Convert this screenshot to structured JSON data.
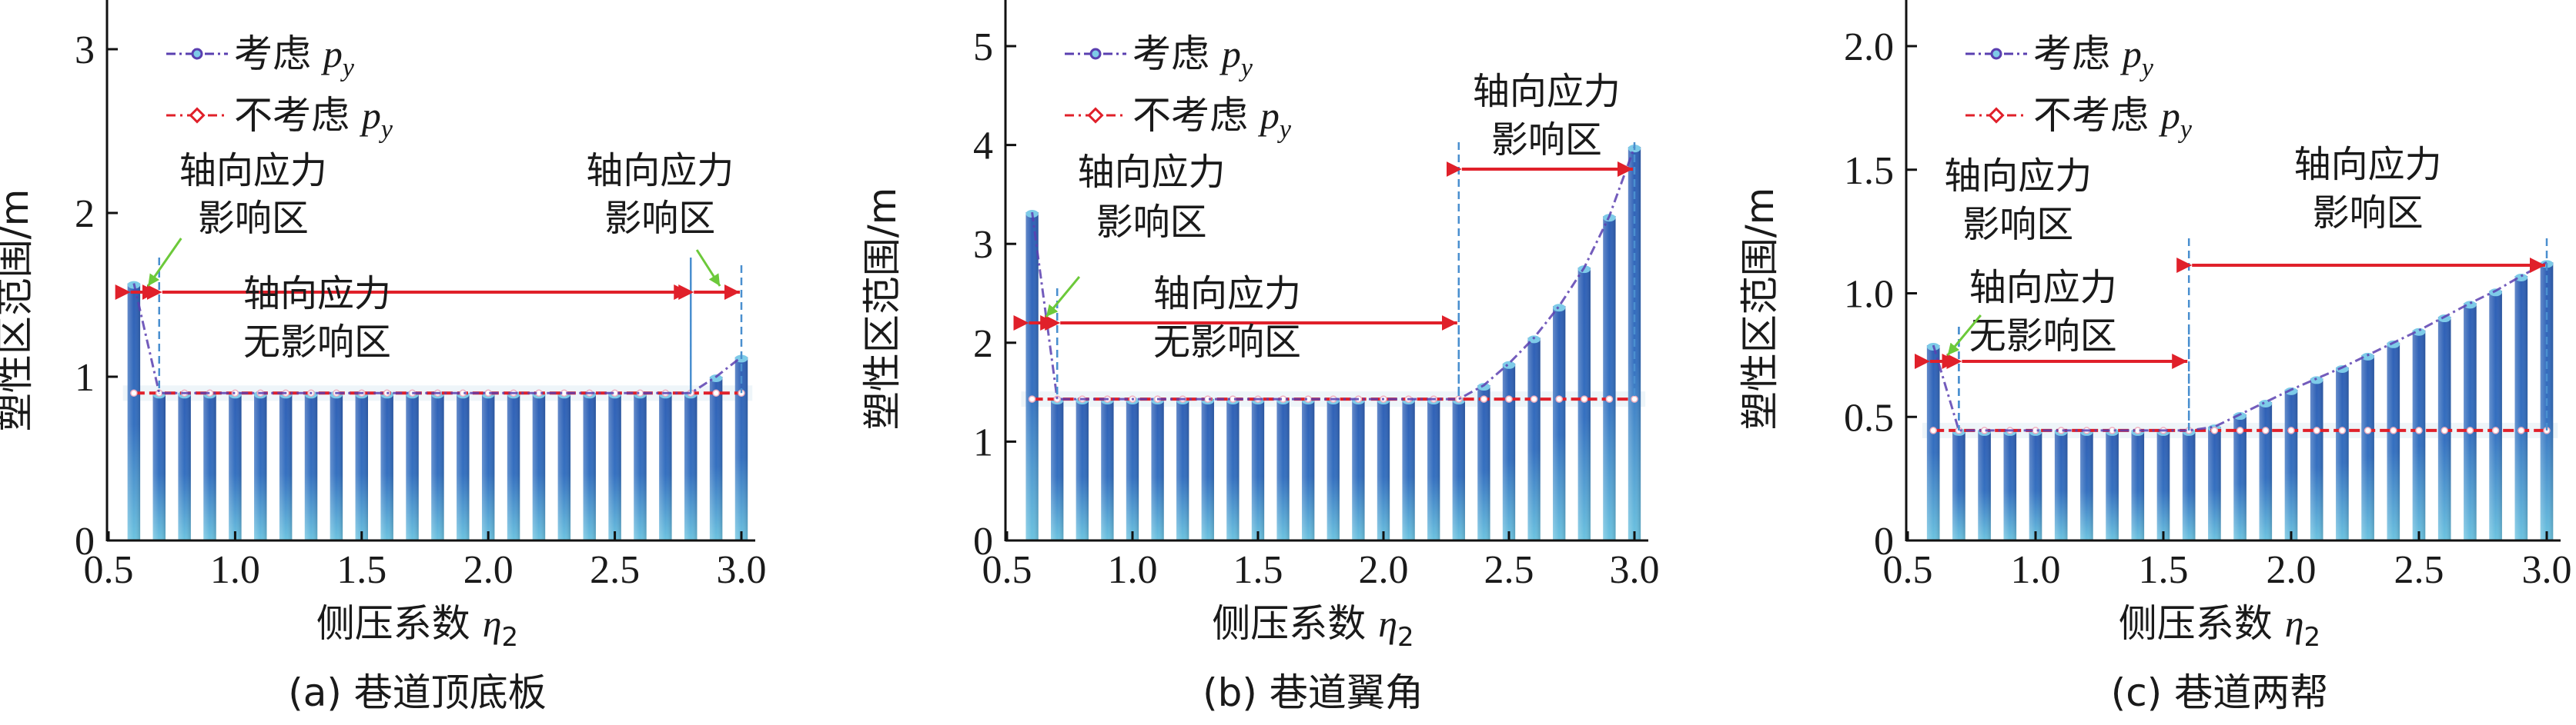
{
  "chart_data": [
    {
      "type": "bar",
      "panel": "a",
      "caption": "(a) 巷道顶底板",
      "xlabel": "侧压系数",
      "xlabel_symbol": "η",
      "xlabel_sub": "2",
      "ylabel": "塑性区范围/m",
      "xlim": [
        0.5,
        3.05
      ],
      "ylim": [
        0,
        3.2
      ],
      "xticks": [
        "0.5",
        "1.0",
        "1.5",
        "2.0",
        "2.5",
        "3.0"
      ],
      "yticks": [
        "0",
        "1",
        "2",
        "3"
      ],
      "x": [
        0.6,
        0.7,
        0.8,
        0.9,
        1.0,
        1.1,
        1.2,
        1.3,
        1.4,
        1.5,
        1.6,
        1.7,
        1.8,
        1.9,
        2.0,
        2.1,
        2.2,
        2.3,
        2.4,
        2.5,
        2.6,
        2.7,
        2.8,
        2.9,
        3.0
      ],
      "series": [
        {
          "name": "考虑 p_y",
          "color": "#5a3fb0",
          "values": [
            1.57,
            0.9,
            0.9,
            0.9,
            0.9,
            0.9,
            0.9,
            0.9,
            0.9,
            0.9,
            0.9,
            0.9,
            0.9,
            0.9,
            0.9,
            0.9,
            0.9,
            0.9,
            0.9,
            0.9,
            0.9,
            0.9,
            0.9,
            1.0,
            1.12
          ]
        },
        {
          "name": "不考虑 p_y",
          "color": "#e0202a",
          "values": [
            0.9,
            0.9,
            0.9,
            0.9,
            0.9,
            0.9,
            0.9,
            0.9,
            0.9,
            0.9,
            0.9,
            0.9,
            0.9,
            0.9,
            0.9,
            0.9,
            0.9,
            0.9,
            0.9,
            0.9,
            0.9,
            0.9,
            0.9,
            0.9,
            0.9
          ]
        }
      ],
      "zones": [
        {
          "label1": "轴向应力",
          "label2": "影响区",
          "from": 0.6,
          "to": 0.7
        },
        {
          "label1": "轴向应力",
          "label2": "无影响区",
          "from": 0.7,
          "to": 2.8
        },
        {
          "label1": "轴向应力",
          "label2": "影响区",
          "from": 2.8,
          "to": 3.0
        }
      ],
      "legend": {
        "position": "top-left",
        "items": [
          {
            "text": "考虑",
            "sym": "p",
            "sub": "y"
          },
          {
            "text": "不考虑",
            "sym": "p",
            "sub": "y"
          }
        ]
      }
    },
    {
      "type": "bar",
      "panel": "b",
      "caption": "(b) 巷道翼角",
      "xlabel": "侧压系数",
      "xlabel_symbol": "η",
      "xlabel_sub": "2",
      "ylabel": "塑性区范围/m",
      "xlim": [
        0.5,
        3.05
      ],
      "ylim": [
        0,
        5.4
      ],
      "xticks": [
        "0.5",
        "1.0",
        "1.5",
        "2.0",
        "2.5",
        "3.0"
      ],
      "yticks": [
        "0",
        "1",
        "2",
        "3",
        "4",
        "5"
      ],
      "x": [
        0.6,
        0.7,
        0.8,
        0.9,
        1.0,
        1.1,
        1.2,
        1.3,
        1.4,
        1.5,
        1.6,
        1.7,
        1.8,
        1.9,
        2.0,
        2.1,
        2.2,
        2.3,
        2.4,
        2.5,
        2.6,
        2.7,
        2.8,
        2.9,
        3.0
      ],
      "series": [
        {
          "name": "考虑 p_y",
          "color": "#5a3fb0",
          "values": [
            3.32,
            1.43,
            1.43,
            1.43,
            1.43,
            1.43,
            1.43,
            1.43,
            1.43,
            1.43,
            1.43,
            1.43,
            1.43,
            1.43,
            1.43,
            1.43,
            1.43,
            1.43,
            1.57,
            1.79,
            2.05,
            2.37,
            2.76,
            3.28,
            3.98
          ]
        },
        {
          "name": "不考虑 p_y",
          "color": "#e0202a",
          "values": [
            1.43,
            1.43,
            1.43,
            1.43,
            1.43,
            1.43,
            1.43,
            1.43,
            1.43,
            1.43,
            1.43,
            1.43,
            1.43,
            1.43,
            1.43,
            1.43,
            1.43,
            1.43,
            1.43,
            1.43,
            1.43,
            1.43,
            1.43,
            1.43,
            1.43
          ]
        }
      ],
      "zones": [
        {
          "label1": "轴向应力",
          "label2": "影响区",
          "from": 0.6,
          "to": 0.7
        },
        {
          "label1": "轴向应力",
          "label2": "无影响区",
          "from": 0.7,
          "to": 2.3
        },
        {
          "label1": "轴向应力",
          "label2": "影响区",
          "from": 2.3,
          "to": 3.0
        }
      ],
      "legend": {
        "position": "top-left",
        "items": [
          {
            "text": "考虑",
            "sym": "p",
            "sub": "y"
          },
          {
            "text": "不考虑",
            "sym": "p",
            "sub": "y"
          }
        ]
      }
    },
    {
      "type": "bar",
      "panel": "c",
      "caption": "(c) 巷道两帮",
      "xlabel": "侧压系数",
      "xlabel_symbol": "η",
      "xlabel_sub": "2",
      "ylabel": "塑性区范围/m",
      "xlim": [
        0.5,
        3.05
      ],
      "ylim": [
        0,
        2.18
      ],
      "xticks": [
        "0.5",
        "1.0",
        "1.5",
        "2.0",
        "2.5",
        "3.0"
      ],
      "yticks": [
        "0",
        "0.5",
        "1.0",
        "1.5",
        "2.0"
      ],
      "x": [
        0.6,
        0.7,
        0.8,
        0.9,
        1.0,
        1.1,
        1.2,
        1.3,
        1.4,
        1.5,
        1.6,
        1.7,
        1.8,
        1.9,
        2.0,
        2.1,
        2.2,
        2.3,
        2.4,
        2.5,
        2.6,
        2.7,
        2.8,
        2.9,
        3.0
      ],
      "series": [
        {
          "name": "考虑 p_y",
          "color": "#5a3fb0",
          "values": [
            0.79,
            0.445,
            0.445,
            0.445,
            0.445,
            0.445,
            0.445,
            0.445,
            0.445,
            0.445,
            0.445,
            0.46,
            0.51,
            0.56,
            0.61,
            0.655,
            0.7,
            0.75,
            0.8,
            0.85,
            0.905,
            0.96,
            1.01,
            1.07,
            1.125
          ]
        },
        {
          "name": "不考虑 p_y",
          "color": "#e0202a",
          "values": [
            0.445,
            0.445,
            0.445,
            0.445,
            0.445,
            0.445,
            0.445,
            0.445,
            0.445,
            0.445,
            0.445,
            0.445,
            0.445,
            0.445,
            0.445,
            0.445,
            0.445,
            0.445,
            0.445,
            0.445,
            0.445,
            0.445,
            0.445,
            0.445,
            0.445
          ]
        }
      ],
      "zones": [
        {
          "label1": "轴向应力",
          "label2": "影响区",
          "from": 0.6,
          "to": 0.7
        },
        {
          "label1": "轴向应力",
          "label2": "无影响区",
          "from": 0.7,
          "to": 1.6
        },
        {
          "label1": "轴向应力",
          "label2": "影响区",
          "from": 1.6,
          "to": 3.0
        }
      ],
      "legend": {
        "position": "top-left",
        "items": [
          {
            "text": "考虑",
            "sym": "p",
            "sub": "y"
          },
          {
            "text": "不考虑",
            "sym": "p",
            "sub": "y"
          }
        ]
      }
    }
  ]
}
